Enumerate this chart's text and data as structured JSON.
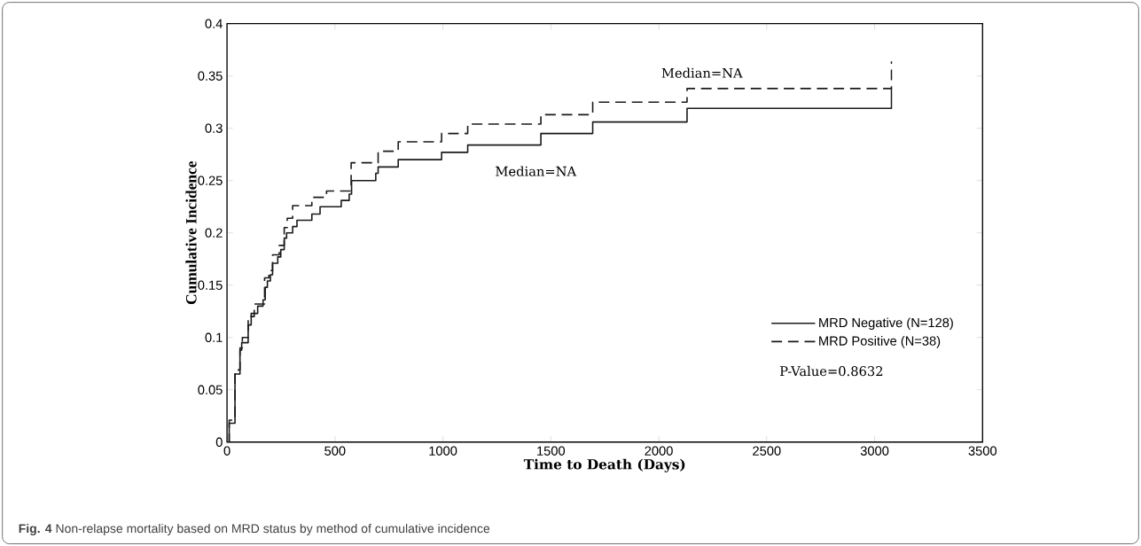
{
  "chart_data": {
    "type": "step",
    "xlabel": "Time to Death (Days)",
    "ylabel": "Cumulative Incidence",
    "xlim": [
      0,
      3500
    ],
    "xticks": [
      0,
      500,
      1000,
      1500,
      2000,
      2500,
      3000,
      3500
    ],
    "ylim": [
      0,
      0.4
    ],
    "yticks": [
      0,
      0.05,
      0.1,
      0.15,
      0.2,
      0.25,
      0.3,
      0.35,
      0.4
    ],
    "grid": false,
    "legend": "bottom right",
    "series": [
      {
        "name": "MRD Negative (N=128)",
        "color": "#1a1a1a",
        "line_style": "solid",
        "x": [
          0,
          10,
          37,
          60,
          68,
          98,
          112,
          142,
          167,
          177,
          187,
          201,
          211,
          235,
          249,
          265,
          276,
          304,
          324,
          393,
          431,
          529,
          566,
          577,
          689,
          700,
          793,
          994,
          1115,
          1454,
          1694,
          2131,
          3078,
          3078
        ],
        "values": [
          0,
          0.018,
          0.065,
          0.088,
          0.095,
          0.112,
          0.123,
          0.13,
          0.136,
          0.148,
          0.154,
          0.16,
          0.171,
          0.177,
          0.184,
          0.195,
          0.2,
          0.206,
          0.212,
          0.218,
          0.225,
          0.231,
          0.237,
          0.25,
          0.257,
          0.263,
          0.27,
          0.277,
          0.284,
          0.295,
          0.306,
          0.319,
          0.319,
          0.339
        ]
      },
      {
        "name": "MRD Positive (N=38)",
        "color": "#1a1a1a",
        "line_style": "dashed",
        "x": [
          0,
          10,
          37,
          60,
          71,
          98,
          126,
          174,
          194,
          211,
          242,
          265,
          279,
          304,
          393,
          461,
          575,
          700,
          793,
          994,
          1115,
          1454,
          1694,
          2131,
          3078,
          3078
        ],
        "values": [
          0,
          0.021,
          0.069,
          0.09,
          0.1,
          0.12,
          0.132,
          0.157,
          0.164,
          0.179,
          0.188,
          0.205,
          0.214,
          0.226,
          0.234,
          0.24,
          0.267,
          0.278,
          0.287,
          0.295,
          0.304,
          0.313,
          0.325,
          0.338,
          0.338,
          0.364
        ]
      }
    ],
    "annotations": [
      "Median=NA",
      "Median=NA",
      "P-Value=0.8632",
      "**Fig. 4** Non-relapse mortality based on MRD status by method of cumulative incidence"
    ]
  }
}
